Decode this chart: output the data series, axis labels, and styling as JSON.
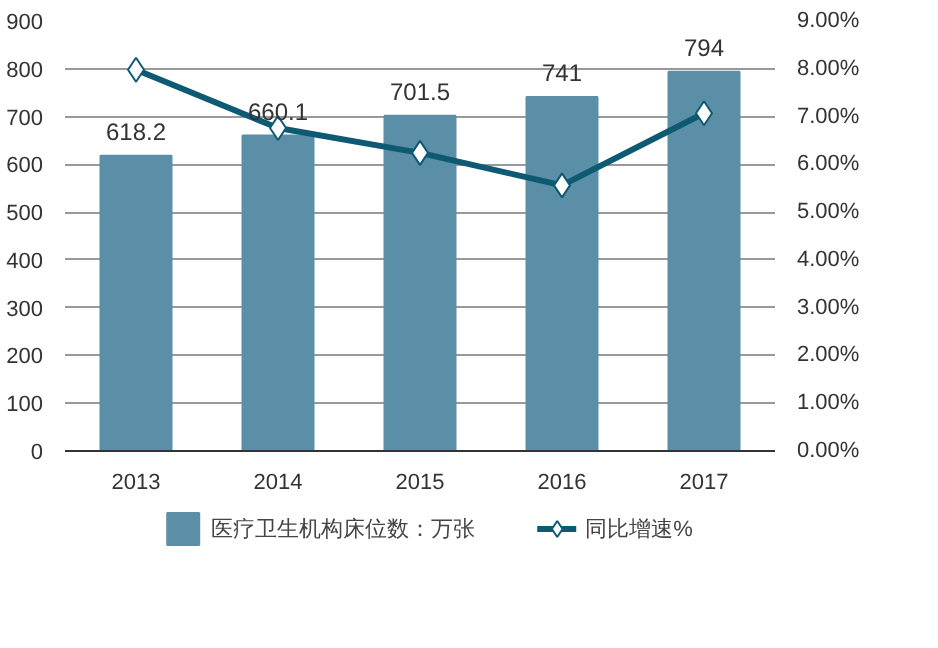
{
  "chart_data": {
    "type": "bar",
    "categories": [
      "2013",
      "2014",
      "2015",
      "2016",
      "2017"
    ],
    "series": [
      {
        "name": "医疗卫生机构床位数：万张",
        "color": "#5b8fa8",
        "values": [
          618.2,
          660.1,
          701.5,
          741,
          794
        ],
        "value_labels": [
          "618.2",
          "660.1",
          "701.5",
          "741",
          "794"
        ]
      },
      {
        "name": "同比增速%",
        "type": "line",
        "axis": "y2",
        "color": "#0e5a73",
        "marker": "diamond",
        "line_style": "solid",
        "values": [
          7.98,
          6.76,
          6.24,
          5.56,
          7.07
        ]
      }
    ],
    "ylim": [
      0,
      900
    ],
    "yticks": [
      0,
      100,
      200,
      300,
      400,
      500,
      600,
      700,
      800,
      900
    ],
    "y2lim": [
      0,
      9
    ],
    "y2ticks": [
      {
        "value": 0,
        "label": "0.00%"
      },
      {
        "value": 1,
        "label": "1.00%"
      },
      {
        "value": 2,
        "label": "2.00%"
      },
      {
        "value": 3,
        "label": "3.00%"
      },
      {
        "value": 4,
        "label": "4.00%"
      },
      {
        "value": 5,
        "label": "5.00%"
      },
      {
        "value": 6,
        "label": "6.00%"
      },
      {
        "value": 7,
        "label": "7.00%"
      },
      {
        "value": 8,
        "label": "8.00%"
      },
      {
        "value": 9,
        "label": "9.00%"
      }
    ],
    "grid": "y",
    "legend": "bottom"
  }
}
